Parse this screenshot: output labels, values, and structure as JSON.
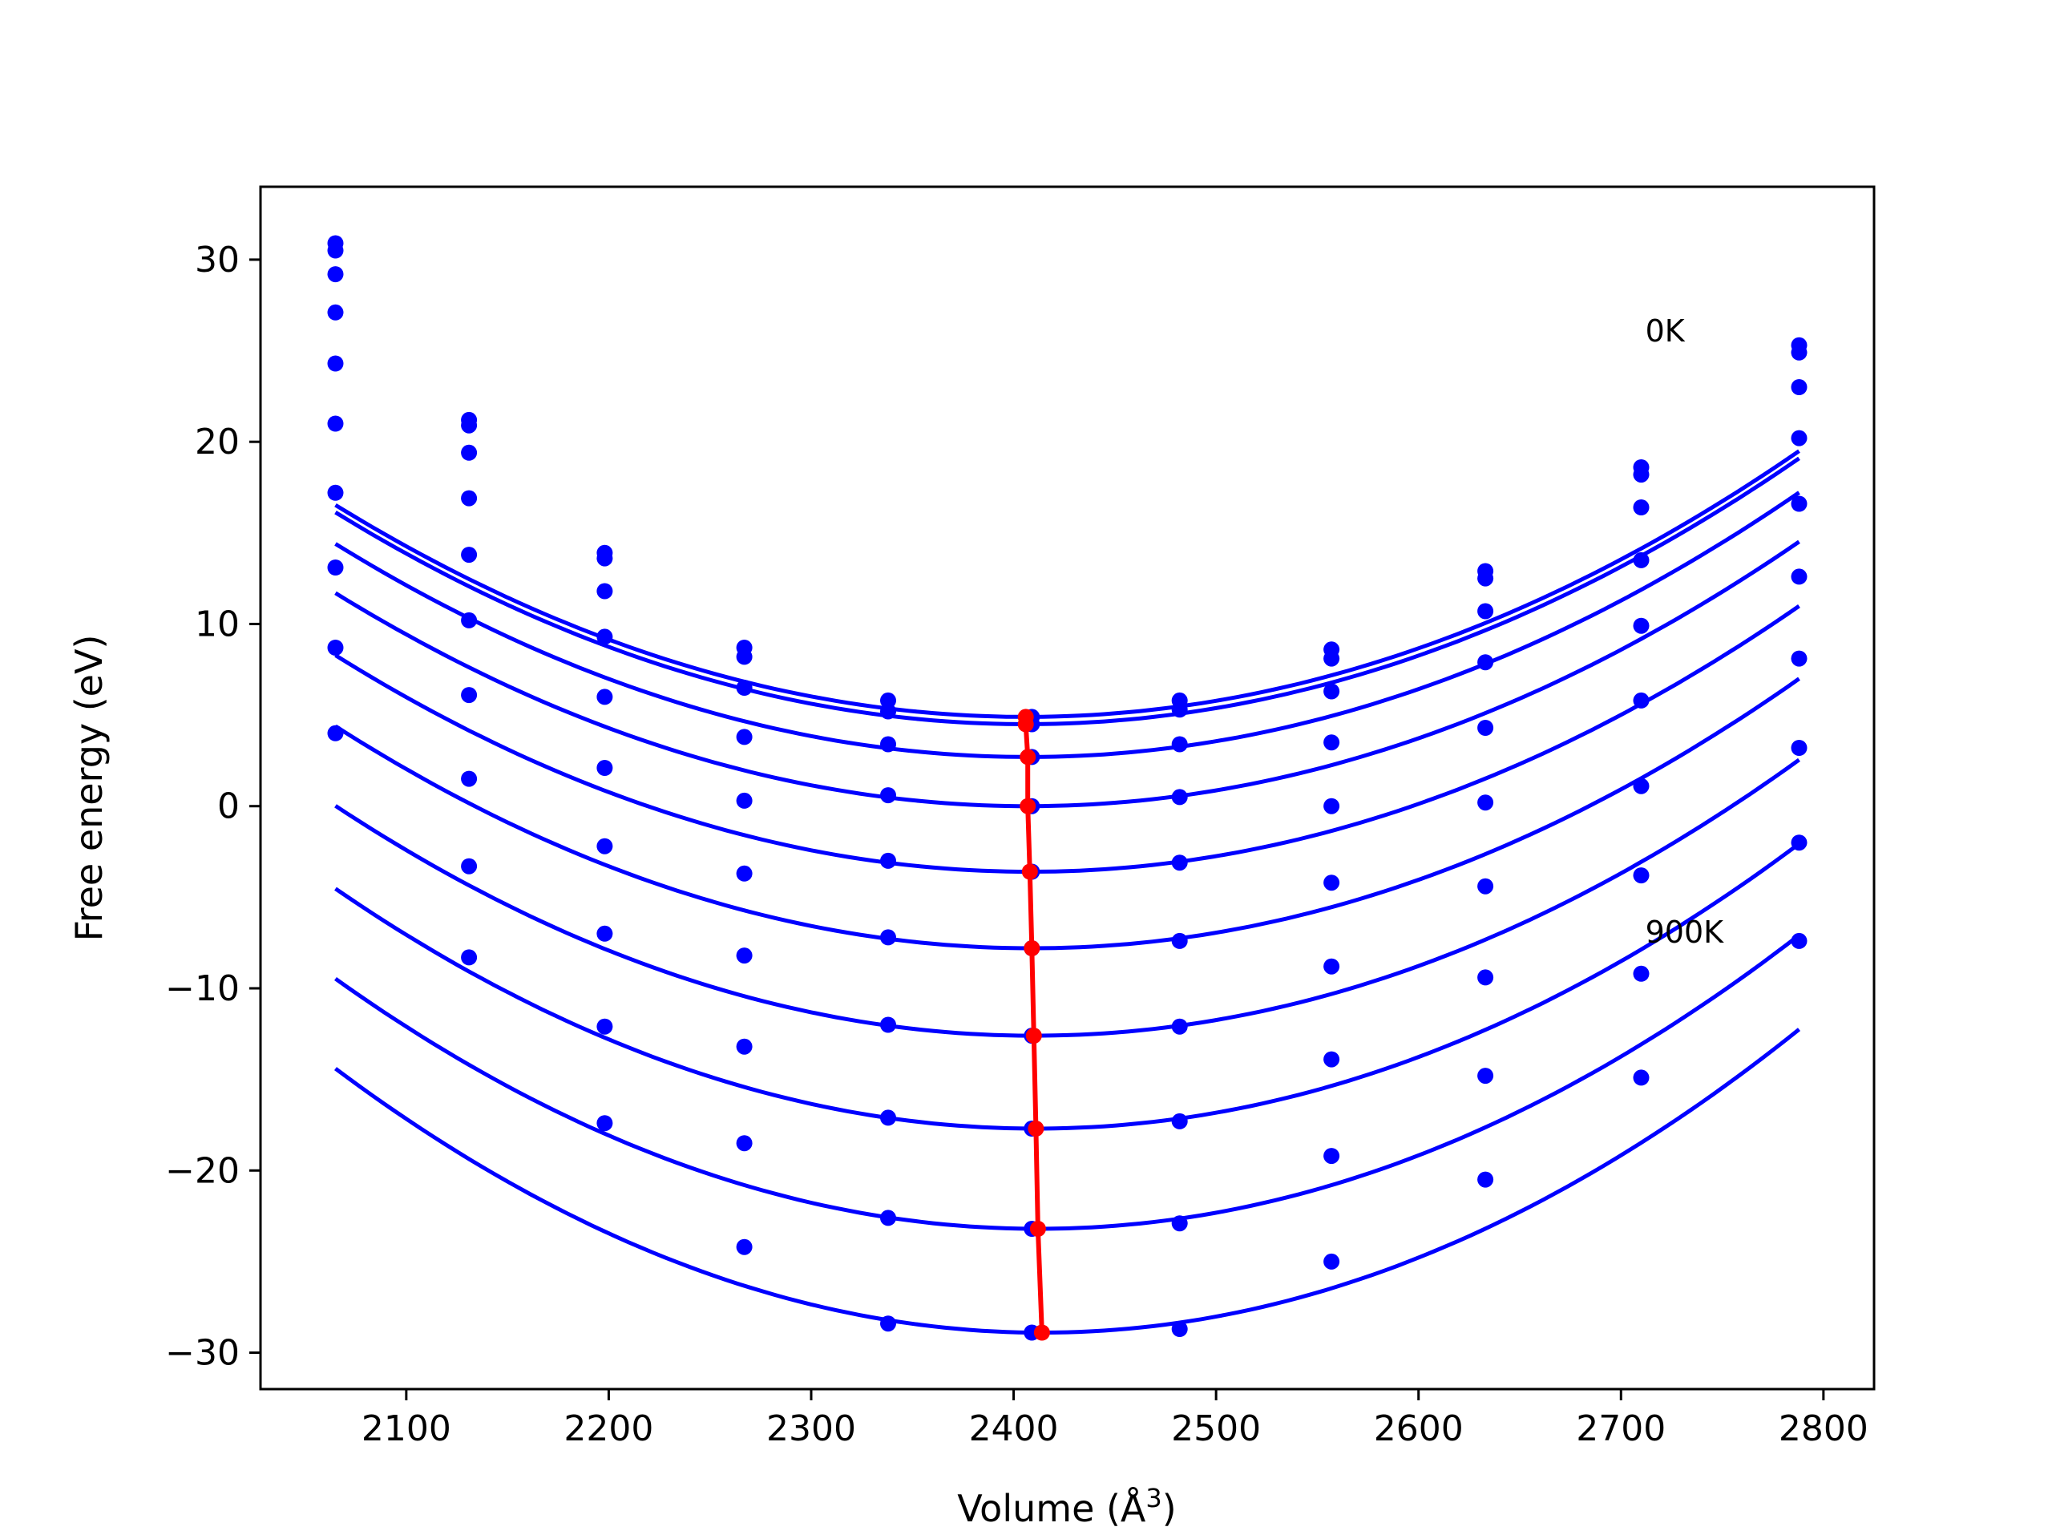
{
  "chart_data": {
    "type": "line",
    "title": "",
    "xlabel": "Volume (Å",
    "xlabel_sup": "3",
    "xlabel_suffix": ")",
    "ylabel": "Free energy (eV)",
    "xlim": [
      2028,
      2825
    ],
    "ylim": [
      -32,
      34
    ],
    "x_ticks": [
      2100,
      2200,
      2300,
      2400,
      2500,
      2600,
      2700,
      2800
    ],
    "y_ticks": [
      -30,
      -20,
      -10,
      0,
      10,
      20,
      30
    ],
    "x_tick_labels": [
      "2100",
      "2200",
      "2300",
      "2400",
      "2500",
      "2600",
      "2700",
      "2800"
    ],
    "y_tick_labels": [
      "−30",
      "−20",
      "−10",
      "0",
      "10",
      "20",
      "30"
    ],
    "grid": false,
    "colors": {
      "curves": "#0000ff",
      "points": "#0000ff",
      "minima": "#ff0000"
    },
    "annotations": [
      {
        "text": "0K",
        "x": 2712,
        "y": 25.5
      },
      {
        "text": "900K",
        "x": 2712,
        "y": -7.5
      }
    ],
    "volumes": [
      2065,
      2131,
      2198,
      2267,
      2338,
      2409,
      2482,
      2557,
      2633,
      2710,
      2788
    ],
    "series": [
      {
        "min_volume": 2406,
        "min_energy": 4.9,
        "a": 0.0001,
        "points": [
          30.9,
          21.2,
          13.9,
          8.7,
          5.8,
          4.9,
          5.8,
          8.6,
          12.9,
          18.6,
          25.3
        ]
      },
      {
        "min_volume": 2406,
        "min_energy": 4.5,
        "a": 0.0001,
        "points": [
          30.5,
          20.9,
          13.6,
          8.2,
          5.2,
          4.5,
          5.3,
          8.1,
          12.5,
          18.2,
          24.9
        ]
      },
      {
        "min_volume": 2407,
        "min_energy": 2.7,
        "a": 0.0001,
        "points": [
          29.2,
          19.4,
          11.8,
          6.5,
          3.4,
          2.7,
          3.4,
          6.3,
          10.7,
          16.4,
          23.0
        ]
      },
      {
        "min_volume": 2407,
        "min_energy": 0.0,
        "a": 0.0001,
        "points": [
          27.1,
          16.9,
          9.3,
          3.8,
          0.6,
          0.0,
          0.5,
          3.5,
          7.9,
          13.5,
          20.2
        ]
      },
      {
        "min_volume": 2408,
        "min_energy": -3.6,
        "a": 0.000101,
        "points": [
          24.3,
          13.8,
          6.0,
          0.3,
          -3.0,
          -3.6,
          -3.1,
          0.0,
          4.3,
          9.9,
          16.6
        ]
      },
      {
        "min_volume": 2409,
        "min_energy": -7.8,
        "a": 0.000103,
        "points": [
          21.0,
          10.2,
          2.1,
          -3.7,
          -7.2,
          -7.8,
          -7.4,
          -4.2,
          0.2,
          5.8,
          12.6
        ]
      },
      {
        "min_volume": 2410,
        "min_energy": -12.6,
        "a": 0.000106,
        "points": [
          17.2,
          6.1,
          -2.2,
          -8.2,
          -12.0,
          -12.6,
          -12.1,
          -8.8,
          -4.4,
          1.1,
          8.1
        ]
      },
      {
        "min_volume": 2411,
        "min_energy": -17.7,
        "a": 0.00011,
        "points": [
          13.1,
          1.5,
          -7.0,
          -13.2,
          -17.1,
          -17.7,
          -17.3,
          -13.9,
          -9.4,
          -3.8,
          3.2
        ]
      },
      {
        "min_volume": 2412,
        "min_energy": -23.2,
        "a": 0.000114,
        "points": [
          8.7,
          -3.3,
          -12.1,
          -18.5,
          -22.6,
          -23.2,
          -22.9,
          -19.2,
          -14.8,
          -9.2,
          -2.0
        ]
      },
      {
        "min_volume": 2414,
        "min_energy": -28.9,
        "a": 0.000119,
        "points": [
          4.0,
          -8.3,
          -17.4,
          -24.2,
          -28.4,
          -28.9,
          -28.7,
          -25.0,
          -20.5,
          -14.9,
          -7.4
        ]
      }
    ]
  }
}
